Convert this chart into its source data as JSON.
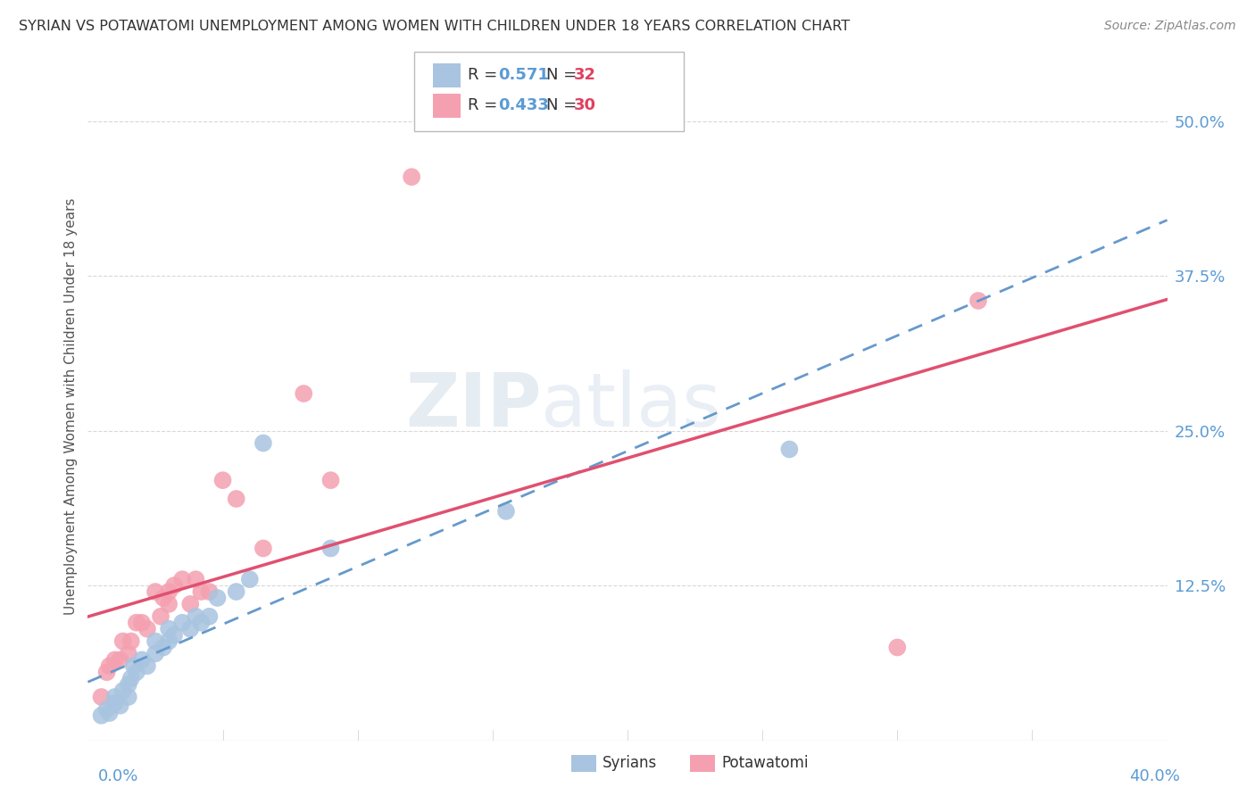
{
  "title": "SYRIAN VS POTAWATOMI UNEMPLOYMENT AMONG WOMEN WITH CHILDREN UNDER 18 YEARS CORRELATION CHART",
  "source": "Source: ZipAtlas.com",
  "ylabel": "Unemployment Among Women with Children Under 18 years",
  "yticks": [
    0.0,
    0.125,
    0.25,
    0.375,
    0.5
  ],
  "ytick_labels": [
    "",
    "12.5%",
    "25.0%",
    "37.5%",
    "50.0%"
  ],
  "xmin": 0.0,
  "xmax": 0.4,
  "ymin": 0.0,
  "ymax": 0.54,
  "syrian_R": 0.571,
  "syrian_N": 32,
  "potawatomi_R": 0.433,
  "potawatomi_N": 30,
  "syrian_color": "#a8c4e0",
  "potawatomi_color": "#f4a0b0",
  "syrian_line_color": "#6699cc",
  "potawatomi_line_color": "#e05070",
  "legend_label_1": "Syrians",
  "legend_label_2": "Potawatomi",
  "syrian_x": [
    0.005,
    0.007,
    0.008,
    0.01,
    0.01,
    0.012,
    0.013,
    0.015,
    0.015,
    0.016,
    0.017,
    0.018,
    0.02,
    0.022,
    0.025,
    0.025,
    0.028,
    0.03,
    0.03,
    0.032,
    0.035,
    0.038,
    0.04,
    0.042,
    0.045,
    0.048,
    0.055,
    0.06,
    0.065,
    0.09,
    0.155,
    0.26
  ],
  "syrian_y": [
    0.02,
    0.025,
    0.022,
    0.03,
    0.035,
    0.028,
    0.04,
    0.035,
    0.045,
    0.05,
    0.06,
    0.055,
    0.065,
    0.06,
    0.07,
    0.08,
    0.075,
    0.08,
    0.09,
    0.085,
    0.095,
    0.09,
    0.1,
    0.095,
    0.1,
    0.115,
    0.12,
    0.13,
    0.24,
    0.155,
    0.185,
    0.235
  ],
  "potawatomi_x": [
    0.005,
    0.007,
    0.008,
    0.01,
    0.012,
    0.013,
    0.015,
    0.016,
    0.018,
    0.02,
    0.022,
    0.025,
    0.027,
    0.028,
    0.03,
    0.03,
    0.032,
    0.035,
    0.038,
    0.04,
    0.042,
    0.045,
    0.05,
    0.055,
    0.065,
    0.08,
    0.09,
    0.12,
    0.3,
    0.33
  ],
  "potawatomi_y": [
    0.035,
    0.055,
    0.06,
    0.065,
    0.065,
    0.08,
    0.07,
    0.08,
    0.095,
    0.095,
    0.09,
    0.12,
    0.1,
    0.115,
    0.11,
    0.12,
    0.125,
    0.13,
    0.11,
    0.13,
    0.12,
    0.12,
    0.21,
    0.195,
    0.155,
    0.28,
    0.21,
    0.455,
    0.075,
    0.355
  ],
  "background_color": "#ffffff",
  "grid_color": "#d8d8d8",
  "watermark_zip": "ZIP",
  "watermark_atlas": "atlas"
}
